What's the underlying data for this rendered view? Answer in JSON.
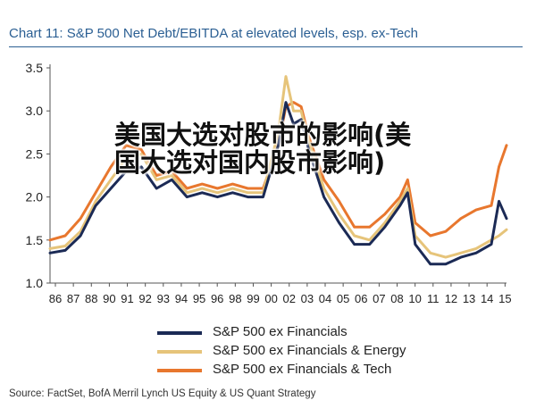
{
  "chart_data": {
    "type": "line",
    "title": "Chart 11: S&P 500 Net Debt/EBITDA at elevated levels, esp. ex-Tech",
    "xlabel": "",
    "ylabel": "",
    "x_tick_labels": [
      "86",
      "87",
      "88",
      "90",
      "91",
      "92",
      "93",
      "94",
      "95",
      "96",
      "98",
      "99",
      "00",
      "02",
      "03",
      "04",
      "05",
      "06",
      "07",
      "08",
      "10",
      "11",
      "12",
      "13",
      "14",
      "15"
    ],
    "x": [
      1986,
      1987,
      1988,
      1989,
      1990,
      1991,
      1992,
      1993,
      1994,
      1995,
      1996,
      1997,
      1998,
      1999,
      2000,
      2001,
      2001.5,
      2002,
      2002.5,
      2003,
      2004,
      2005,
      2006,
      2007,
      2008,
      2009,
      2009.5,
      2010,
      2011,
      2012,
      2013,
      2014,
      2015,
      2015.5,
      2016
    ],
    "ylim": [
      1.0,
      3.5
    ],
    "y_ticks": [
      1.0,
      1.5,
      2.0,
      2.5,
      3.0,
      3.5
    ],
    "grid": false,
    "legend_position": "bottom",
    "series": [
      {
        "name": "S&P 500 ex Financials",
        "color": "#1b2a55",
        "values": [
          1.35,
          1.38,
          1.55,
          1.9,
          2.1,
          2.3,
          2.35,
          2.1,
          2.2,
          2.0,
          2.05,
          2.0,
          2.05,
          2.0,
          2.0,
          2.6,
          3.1,
          2.85,
          2.9,
          2.55,
          2.0,
          1.7,
          1.45,
          1.45,
          1.65,
          1.9,
          2.05,
          1.45,
          1.22,
          1.22,
          1.3,
          1.35,
          1.45,
          1.95,
          1.75
        ]
      },
      {
        "name": "S&P 500 ex Financials & Energy",
        "color": "#e6c47a",
        "values": [
          1.4,
          1.43,
          1.6,
          1.95,
          2.2,
          2.45,
          2.5,
          2.2,
          2.25,
          2.05,
          2.1,
          2.05,
          2.1,
          2.05,
          2.05,
          2.75,
          3.4,
          3.0,
          3.0,
          2.65,
          2.1,
          1.8,
          1.55,
          1.5,
          1.7,
          1.95,
          2.1,
          1.55,
          1.35,
          1.3,
          1.35,
          1.4,
          1.5,
          1.55,
          1.62
        ]
      },
      {
        "name": "S&P 500 ex Financials & Tech",
        "color": "#e8772e",
        "values": [
          1.5,
          1.55,
          1.75,
          2.05,
          2.35,
          2.6,
          2.55,
          2.25,
          2.3,
          2.1,
          2.15,
          2.1,
          2.15,
          2.1,
          2.1,
          2.6,
          3.05,
          3.1,
          3.05,
          2.7,
          2.2,
          1.95,
          1.65,
          1.65,
          1.8,
          2.0,
          2.2,
          1.7,
          1.55,
          1.6,
          1.75,
          1.85,
          1.9,
          2.35,
          2.6
        ]
      }
    ]
  },
  "overlay_text": "美国大选对股市的影响(美国大选对国内股市影响)",
  "source": "Source: FactSet, BofA Merril Lynch US Equity & US Quant Strategy"
}
